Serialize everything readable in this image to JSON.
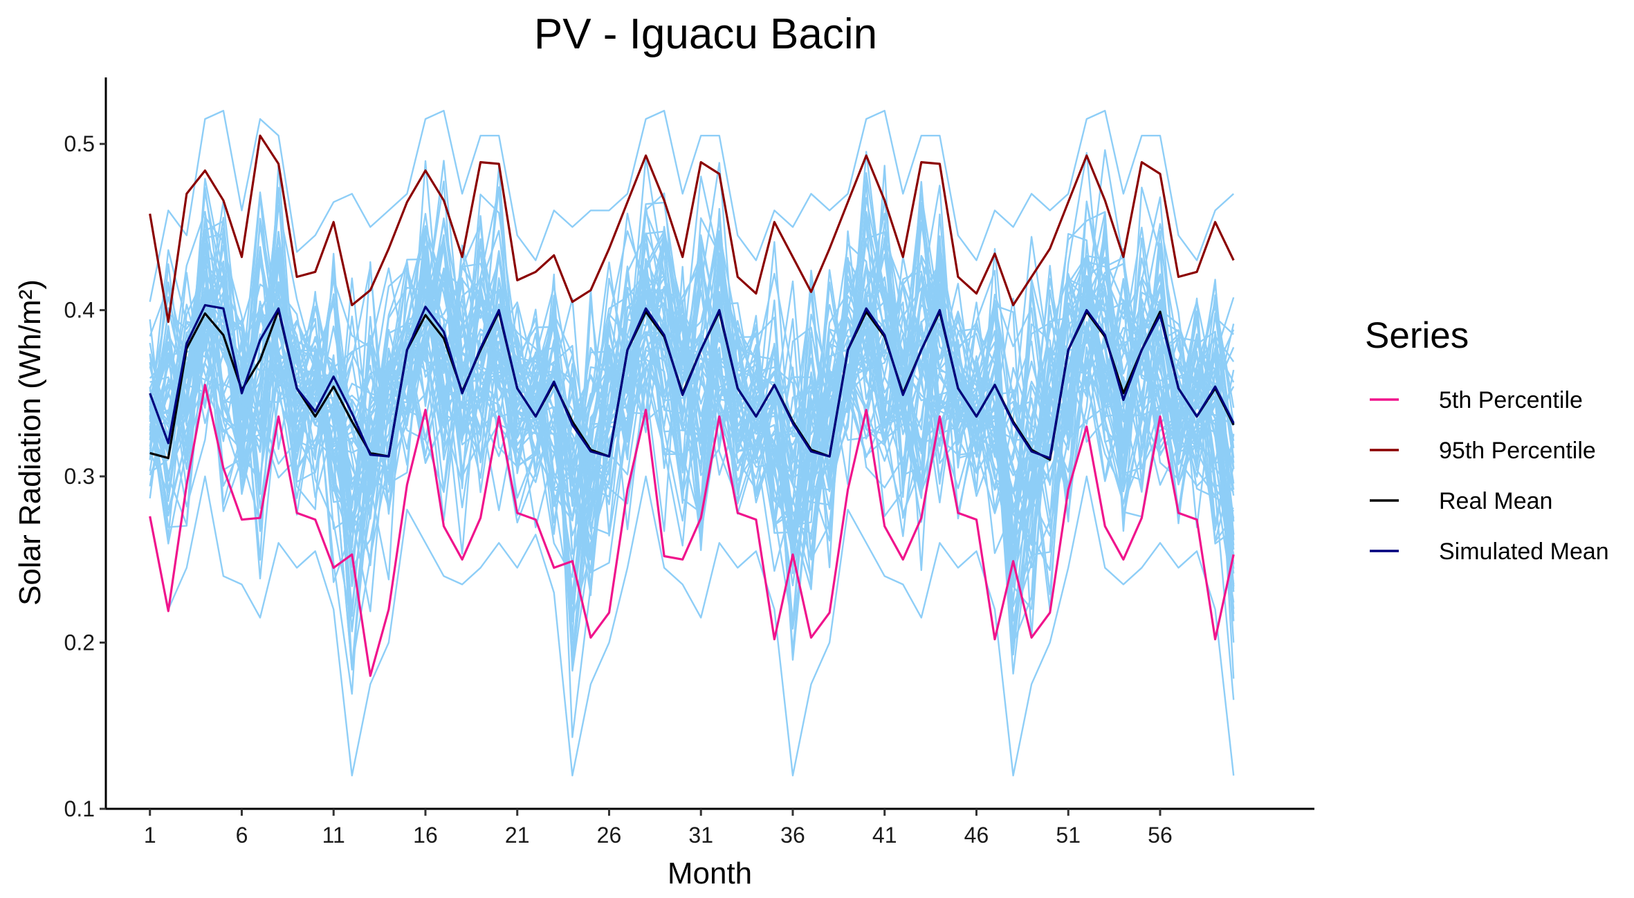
{
  "chart_data": {
    "type": "line",
    "title": "PV - Iguacu Bacin",
    "xlabel": "Month",
    "ylabel": "Solar Radiation (Wh/m²)",
    "x": [
      1,
      2,
      3,
      4,
      5,
      6,
      7,
      8,
      9,
      10,
      11,
      12,
      13,
      14,
      15,
      16,
      17,
      18,
      19,
      20,
      21,
      22,
      23,
      24,
      25,
      26,
      27,
      28,
      29,
      30,
      31,
      32,
      33,
      34,
      35,
      36,
      37,
      38,
      39,
      40,
      41,
      42,
      43,
      44,
      45,
      46,
      47,
      48,
      49,
      50,
      51,
      52,
      53,
      54,
      55,
      56,
      57,
      58,
      59,
      60
    ],
    "xlim": [
      -1.4,
      64.4
    ],
    "ylim": [
      0.1,
      0.54
    ],
    "x_ticks": [
      "1",
      "6",
      "11",
      "16",
      "21",
      "26",
      "31",
      "36",
      "41",
      "46",
      "51",
      "56"
    ],
    "y_ticks": [
      "0.1",
      "0.2",
      "0.3",
      "0.4",
      "0.5"
    ],
    "grid": false,
    "legend": {
      "title": "Series",
      "position": "right"
    },
    "ensemble": {
      "color": "#8ECEF7",
      "count": 60,
      "upper_envelope": [
        0.405,
        0.46,
        0.445,
        0.515,
        0.52,
        0.46,
        0.515,
        0.505,
        0.435,
        0.445,
        0.465,
        0.47,
        0.45,
        0.46,
        0.47,
        0.515,
        0.52,
        0.47,
        0.505,
        0.505,
        0.445,
        0.43,
        0.46,
        0.45,
        0.46,
        0.46,
        0.47,
        0.515,
        0.52,
        0.47,
        0.505,
        0.505,
        0.445,
        0.43,
        0.46,
        0.45,
        0.47,
        0.46,
        0.47,
        0.515,
        0.52,
        0.47,
        0.505,
        0.505,
        0.445,
        0.43,
        0.46,
        0.45,
        0.47,
        0.46,
        0.47,
        0.515,
        0.52,
        0.47,
        0.505,
        0.505,
        0.445,
        0.43,
        0.46,
        0.47
      ],
      "lower_envelope": [
        0.275,
        0.22,
        0.245,
        0.3,
        0.24,
        0.235,
        0.215,
        0.26,
        0.245,
        0.255,
        0.22,
        0.12,
        0.175,
        0.2,
        0.28,
        0.26,
        0.24,
        0.235,
        0.245,
        0.26,
        0.245,
        0.265,
        0.23,
        0.12,
        0.175,
        0.2,
        0.245,
        0.3,
        0.245,
        0.235,
        0.215,
        0.26,
        0.245,
        0.255,
        0.22,
        0.12,
        0.175,
        0.2,
        0.28,
        0.26,
        0.24,
        0.235,
        0.215,
        0.26,
        0.245,
        0.255,
        0.22,
        0.12,
        0.175,
        0.2,
        0.245,
        0.3,
        0.245,
        0.235,
        0.245,
        0.26,
        0.245,
        0.255,
        0.22,
        0.12
      ]
    },
    "series": [
      {
        "name": "5th Percentile",
        "color": "#F0148C",
        "values": [
          0.276,
          0.219,
          0.295,
          0.355,
          0.305,
          0.274,
          0.275,
          0.336,
          0.278,
          0.274,
          0.245,
          0.253,
          0.18,
          0.22,
          0.295,
          0.34,
          0.27,
          0.25,
          0.275,
          0.336,
          0.278,
          0.274,
          0.245,
          0.249,
          0.203,
          0.218,
          0.292,
          0.34,
          0.252,
          0.25,
          0.275,
          0.336,
          0.278,
          0.274,
          0.202,
          0.253,
          0.203,
          0.218,
          0.292,
          0.34,
          0.27,
          0.25,
          0.275,
          0.336,
          0.278,
          0.274,
          0.202,
          0.249,
          0.203,
          0.218,
          0.292,
          0.33,
          0.27,
          0.25,
          0.275,
          0.336,
          0.278,
          0.274,
          0.202,
          0.253
        ]
      },
      {
        "name": "95th Percentile",
        "color": "#8B0000",
        "values": [
          0.458,
          0.393,
          0.47,
          0.484,
          0.466,
          0.432,
          0.505,
          0.488,
          0.42,
          0.423,
          0.453,
          0.403,
          0.412,
          0.437,
          0.465,
          0.484,
          0.466,
          0.432,
          0.489,
          0.488,
          0.418,
          0.423,
          0.433,
          0.405,
          0.412,
          0.437,
          0.465,
          0.493,
          0.466,
          0.432,
          0.489,
          0.482,
          0.42,
          0.41,
          0.453,
          0.432,
          0.411,
          0.437,
          0.465,
          0.493,
          0.466,
          0.432,
          0.489,
          0.488,
          0.42,
          0.41,
          0.434,
          0.403,
          0.42,
          0.437,
          0.465,
          0.493,
          0.466,
          0.432,
          0.489,
          0.482,
          0.42,
          0.423,
          0.453,
          0.43
        ]
      },
      {
        "name": "Real Mean",
        "color": "#000000",
        "values": [
          0.314,
          0.311,
          0.377,
          0.398,
          0.385,
          0.352,
          0.37,
          0.4,
          0.353,
          0.336,
          0.354,
          0.333,
          0.314,
          0.312,
          0.376,
          0.397,
          0.383,
          0.351,
          0.376,
          0.399,
          0.353,
          0.336,
          0.356,
          0.333,
          0.316,
          0.312,
          0.376,
          0.399,
          0.384,
          0.35,
          0.376,
          0.399,
          0.353,
          0.336,
          0.355,
          0.333,
          0.316,
          0.312,
          0.376,
          0.399,
          0.384,
          0.35,
          0.376,
          0.399,
          0.353,
          0.336,
          0.355,
          0.333,
          0.316,
          0.31,
          0.376,
          0.399,
          0.384,
          0.35,
          0.376,
          0.399,
          0.353,
          0.336,
          0.353,
          0.331
        ]
      },
      {
        "name": "Simulated Mean",
        "color": "#00007D",
        "values": [
          0.35,
          0.32,
          0.38,
          0.403,
          0.401,
          0.35,
          0.382,
          0.401,
          0.353,
          0.339,
          0.36,
          0.338,
          0.313,
          0.312,
          0.376,
          0.402,
          0.387,
          0.35,
          0.377,
          0.4,
          0.353,
          0.336,
          0.357,
          0.331,
          0.315,
          0.312,
          0.376,
          0.401,
          0.385,
          0.349,
          0.376,
          0.4,
          0.353,
          0.336,
          0.355,
          0.332,
          0.315,
          0.312,
          0.376,
          0.401,
          0.385,
          0.349,
          0.376,
          0.4,
          0.353,
          0.336,
          0.355,
          0.332,
          0.315,
          0.311,
          0.376,
          0.4,
          0.385,
          0.346,
          0.376,
          0.397,
          0.353,
          0.336,
          0.354,
          0.332
        ]
      }
    ]
  }
}
